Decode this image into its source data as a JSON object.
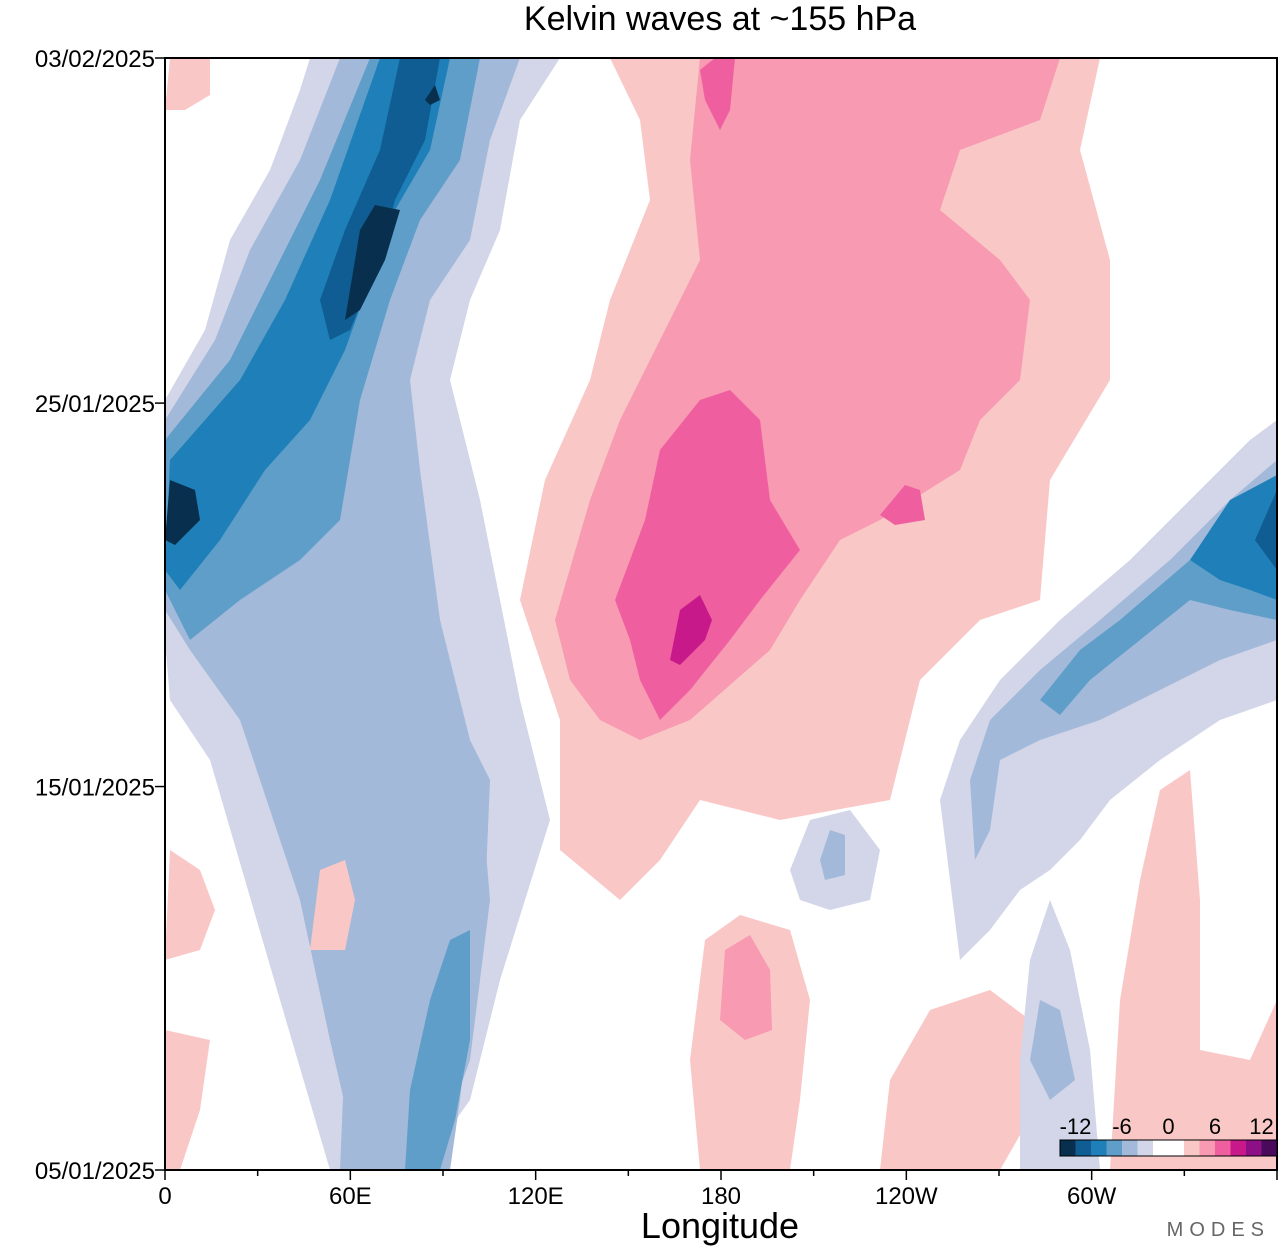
{
  "chart_data": {
    "type": "heatmap",
    "title": "Kelvin waves at ~155 hPa",
    "xlabel": "Longitude",
    "ylabel": "",
    "x_ticks": [
      "0",
      "60E",
      "120E",
      "180",
      "120W",
      "60W"
    ],
    "x_tick_values": [
      0,
      60,
      120,
      180,
      240,
      300
    ],
    "xlim": [
      0,
      360
    ],
    "y_ticks": [
      "05/01/2025",
      "15/01/2025",
      "25/01/2025",
      "03/02/2025"
    ],
    "y_tick_values": [
      "2025-01-05",
      "2025-01-15",
      "2025-01-25",
      "2025-02-03"
    ],
    "ylim": [
      "2025-01-05",
      "2025-02-03"
    ],
    "colorbar": {
      "labels": [
        "-12",
        "-6",
        "0",
        "6",
        "12"
      ],
      "colors": [
        "#08304e",
        "#0f5d92",
        "#1f7fb8",
        "#5f9ec9",
        "#a3b9d9",
        "#d2d6e8",
        "#ffffff",
        "#ffffff",
        "#f9c8c6",
        "#f79ab2",
        "#ef5fa0",
        "#c8198b",
        "#8d0f86",
        "#4a0a5c"
      ]
    },
    "legend_position": "bottom-right",
    "features": [
      {
        "name": "negative-band-east-indian-ocean",
        "sign": "negative",
        "peak": -12,
        "center_lon": 75,
        "center_date": "2025-01-28"
      },
      {
        "name": "negative-band-dateline-west",
        "sign": "negative",
        "peak": -12,
        "center_lon": 5,
        "center_date": "2025-01-22"
      },
      {
        "name": "positive-band-west-pacific",
        "sign": "positive",
        "peak": 12,
        "center_lon": 170,
        "center_date": "2025-01-20"
      },
      {
        "name": "negative-band-atlantic",
        "sign": "negative",
        "peak": -12,
        "center_lon": 355,
        "center_date": "2025-01-22"
      }
    ]
  },
  "brand": "MODES"
}
